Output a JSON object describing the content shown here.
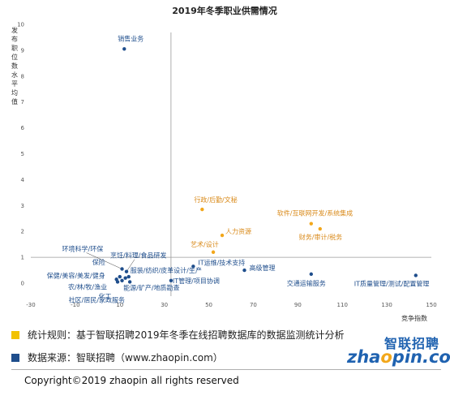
{
  "chart_data": {
    "type": "scatter",
    "title": "2019年冬季职业供需情况",
    "xlabel": "竞争指数",
    "ylabel": "发布职位数水平均值",
    "xlim": [
      -30,
      150
    ],
    "ylim": [
      -0.5,
      10
    ],
    "xticks": [
      "-30",
      "-10",
      "10",
      "30",
      "50",
      "70",
      "90",
      "110",
      "130",
      "150"
    ],
    "yticks": [
      "0",
      "1",
      "2",
      "3",
      "4",
      "5",
      "6",
      "7",
      "8",
      "9",
      "10"
    ],
    "reference_lines": {
      "x": 33,
      "y": 1
    },
    "colors": {
      "orange": "#f2a71b",
      "navy": "#1f4e8c",
      "label_orange": "#d98a1a",
      "label_navy": "#1f4e8c"
    },
    "points": [
      {
        "label": "销售业务",
        "x": 12,
        "y": 9.05,
        "color": "navy"
      },
      {
        "label": "行政/后勤/文秘",
        "x": 47,
        "y": 2.85,
        "color": "orange"
      },
      {
        "label": "软件/互联网开发/系统集成",
        "x": 96,
        "y": 2.3,
        "color": "orange"
      },
      {
        "label": "财务/审计/税务",
        "x": 100,
        "y": 2.1,
        "color": "orange"
      },
      {
        "label": "人力资源",
        "x": 56,
        "y": 1.85,
        "color": "orange"
      },
      {
        "label": "艺术/设计",
        "x": 52,
        "y": 1.2,
        "color": "orange"
      },
      {
        "label": "IT运维/技术支持",
        "x": 43,
        "y": 0.65,
        "color": "navy"
      },
      {
        "label": "高级管理",
        "x": 66,
        "y": 0.5,
        "color": "navy"
      },
      {
        "label": "交通运输服务",
        "x": 96,
        "y": 0.35,
        "color": "navy"
      },
      {
        "label": "IT质量管理/测试/配置管理",
        "x": 143,
        "y": 0.3,
        "color": "navy"
      },
      {
        "label": "IT管理/项目协调",
        "x": 33,
        "y": 0.1,
        "color": "navy"
      },
      {
        "label": "环境科学/环保",
        "x": 11,
        "y": 0.55,
        "color": "navy"
      },
      {
        "label": "保险",
        "x": 10,
        "y": 0.25,
        "color": "navy"
      },
      {
        "label": "烹饪/料理/食品研发",
        "x": 13,
        "y": 0.45,
        "color": "navy"
      },
      {
        "label": "保健/美容/美发/健身",
        "x": 8.5,
        "y": 0.15,
        "color": "navy"
      },
      {
        "label": "服装/纺织/皮革设计/生产",
        "x": 14,
        "y": 0.25,
        "color": "navy"
      },
      {
        "label": "农/林/牧/渔业",
        "x": 9,
        "y": 0.05,
        "color": "navy"
      },
      {
        "label": "化工",
        "x": 11,
        "y": 0.1,
        "color": "navy"
      },
      {
        "label": "能源/矿产/地质勘查",
        "x": 14.5,
        "y": 0.05,
        "color": "navy"
      },
      {
        "label": "社区/居民/家政服务",
        "x": 12.5,
        "y": 0.2,
        "color": "navy"
      }
    ]
  },
  "footer": {
    "rule_text": "统计规则：基于智联招聘2019年冬季在线招聘数据库的数据监测统计分析",
    "source_text": "数据来源：智联招聘（www.zhaopin.com）",
    "copyright": "Copyright©2019 zhaopin all rights reserved",
    "rule_color": "#f2c200",
    "source_color": "#1f4e8c"
  },
  "logo": {
    "cn": "智联招聘",
    "en_pre": "zha",
    "en_o": "o",
    "en_post": "pin.com"
  }
}
